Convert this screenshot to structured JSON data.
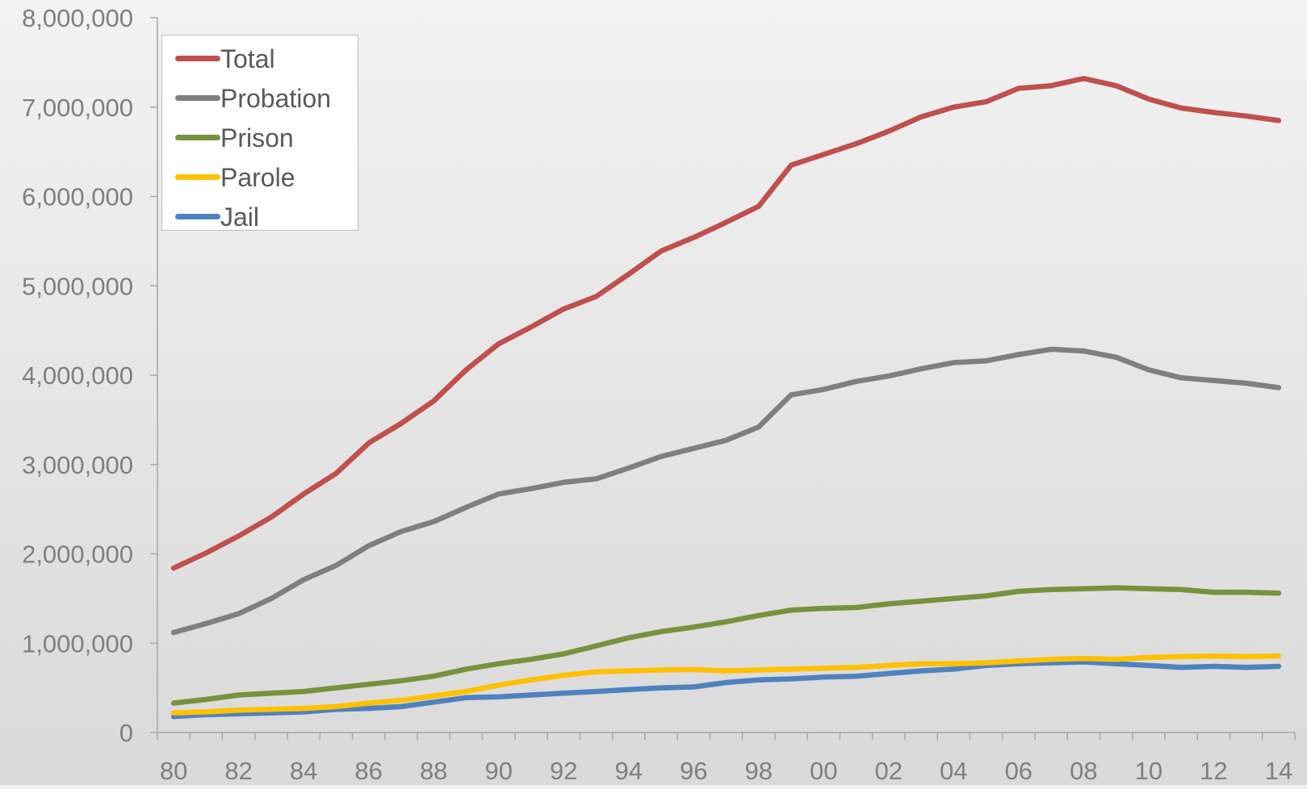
{
  "chart_data": {
    "type": "line",
    "title": "",
    "xlabel": "",
    "ylabel": "",
    "x_tick_labels": [
      "80",
      "82",
      "84",
      "86",
      "88",
      "90",
      "92",
      "94",
      "96",
      "98",
      "00",
      "02",
      "04",
      "06",
      "08",
      "10",
      "12",
      "14"
    ],
    "y_tick_labels": [
      "0",
      "1,000,000",
      "2,000,000",
      "3,000,000",
      "4,000,000",
      "5,000,000",
      "6,000,000",
      "7,000,000",
      "8,000,000"
    ],
    "ylim": [
      0,
      8000000
    ],
    "x": [
      1980,
      1981,
      1982,
      1983,
      1984,
      1985,
      1986,
      1987,
      1988,
      1989,
      1990,
      1991,
      1992,
      1993,
      1994,
      1995,
      1996,
      1997,
      1998,
      1999,
      2000,
      2001,
      2002,
      2003,
      2004,
      2005,
      2006,
      2007,
      2008,
      2009,
      2010,
      2011,
      2012,
      2013,
      2014
    ],
    "grid": false,
    "legend_position": "top-left",
    "series": [
      {
        "name": "Total",
        "color": "#c0504d",
        "values": [
          1840000,
          2010000,
          2200000,
          2410000,
          2670000,
          2900000,
          3240000,
          3460000,
          3710000,
          4060000,
          4350000,
          4540000,
          4740000,
          4880000,
          5130000,
          5390000,
          5540000,
          5710000,
          5890000,
          6350000,
          6470000,
          6590000,
          6730000,
          6890000,
          7000000,
          7060000,
          7210000,
          7240000,
          7320000,
          7240000,
          7090000,
          6990000,
          6940000,
          6900000,
          6850000
        ]
      },
      {
        "name": "Probation",
        "color": "#7f7f7f",
        "values": [
          1120000,
          1220000,
          1330000,
          1500000,
          1710000,
          1870000,
          2090000,
          2250000,
          2360000,
          2520000,
          2670000,
          2730000,
          2800000,
          2840000,
          2960000,
          3090000,
          3180000,
          3270000,
          3420000,
          3780000,
          3840000,
          3930000,
          3990000,
          4070000,
          4140000,
          4160000,
          4230000,
          4290000,
          4270000,
          4200000,
          4060000,
          3970000,
          3940000,
          3910000,
          3860000
        ]
      },
      {
        "name": "Prison",
        "color": "#76923c",
        "values": [
          330000,
          370000,
          420000,
          440000,
          460000,
          500000,
          540000,
          580000,
          630000,
          710000,
          770000,
          820000,
          880000,
          970000,
          1060000,
          1130000,
          1180000,
          1240000,
          1310000,
          1370000,
          1390000,
          1400000,
          1440000,
          1470000,
          1500000,
          1530000,
          1580000,
          1600000,
          1610000,
          1620000,
          1610000,
          1600000,
          1570000,
          1570000,
          1560000
        ]
      },
      {
        "name": "Parole",
        "color": "#ffc000",
        "values": [
          220000,
          230000,
          250000,
          260000,
          270000,
          290000,
          330000,
          360000,
          410000,
          460000,
          530000,
          590000,
          640000,
          680000,
          690000,
          700000,
          705000,
          690000,
          700000,
          710000,
          720000,
          730000,
          750000,
          770000,
          770000,
          780000,
          800000,
          820000,
          830000,
          820000,
          840000,
          850000,
          855000,
          850000,
          855000
        ]
      },
      {
        "name": "Jail",
        "color": "#4f81bd",
        "values": [
          180000,
          200000,
          210000,
          220000,
          230000,
          260000,
          270000,
          290000,
          340000,
          390000,
          400000,
          420000,
          440000,
          460000,
          480000,
          500000,
          510000,
          560000,
          590000,
          600000,
          620000,
          630000,
          660000,
          690000,
          710000,
          750000,
          770000,
          780000,
          790000,
          770000,
          750000,
          730000,
          740000,
          730000,
          740000
        ]
      }
    ]
  }
}
